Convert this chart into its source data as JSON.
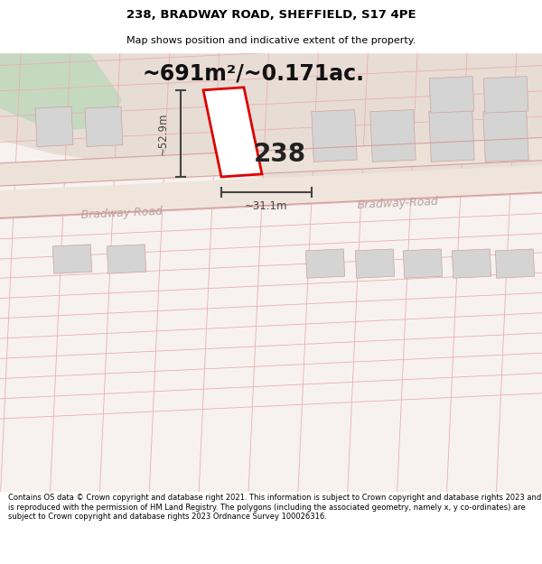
{
  "title_line1": "238, BRADWAY ROAD, SHEFFIELD, S17 4PE",
  "title_line2": "Map shows position and indicative extent of the property.",
  "area_text": "~691m²/~0.171ac.",
  "property_number": "238",
  "dim_width": "~31.1m",
  "dim_height": "~52.9m",
  "road_label1": "Bradway Road",
  "road_label2": "Bradway-Road",
  "footer_text": "Contains OS data © Crown copyright and database right 2021. This information is subject to Crown copyright and database rights 2023 and is reproduced with the permission of HM Land Registry. The polygons (including the associated geometry, namely x, y co-ordinates) are subject to Crown copyright and database rights 2023 Ordnance Survey 100026316.",
  "bg_map_color": "#f7f2ef",
  "road_fill_color": "#f0e8e0",
  "road_edge_color": "#d4a0a0",
  "property_line_color": "#dd0000",
  "property_fill_color": "#ffffff",
  "gray_plot_color": "#d8d8d8",
  "gray_plot_edge": "#d4a0a0",
  "green_fill": "#c8dac0",
  "tan_fill": "#e0d0c0",
  "dim_color": "#444444",
  "road_text_color": "#b8a0a0",
  "title_fontsize": 9.5,
  "subtitle_fontsize": 8,
  "area_fontsize": 17,
  "prop_num_fontsize": 20,
  "dim_fontsize": 8.5,
  "road_fontsize": 9,
  "footer_fontsize": 6.0
}
